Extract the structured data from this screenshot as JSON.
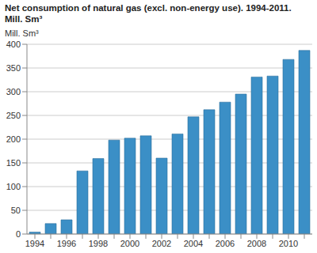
{
  "chart_data": {
    "type": "bar",
    "title": "Net consumption of natural gas (excl. non-energy use). 1994-2011.",
    "subtitle": "Mill. Sm³",
    "y_label": "Mill. Sm³",
    "categories": [
      "1994",
      null,
      "1996",
      null,
      "1998",
      null,
      "2000",
      null,
      "2002",
      null,
      "2004",
      null,
      "2006",
      null,
      "2008",
      null,
      "2010",
      null
    ],
    "values": [
      4,
      22,
      30,
      133,
      159,
      198,
      202,
      207,
      160,
      211,
      247,
      262,
      278,
      295,
      331,
      333,
      368,
      387
    ],
    "color": "#3b8fc6",
    "ylim": [
      0,
      400
    ],
    "yticks": [
      0,
      50,
      100,
      150,
      200,
      250,
      300,
      350,
      400
    ],
    "grid": true
  }
}
